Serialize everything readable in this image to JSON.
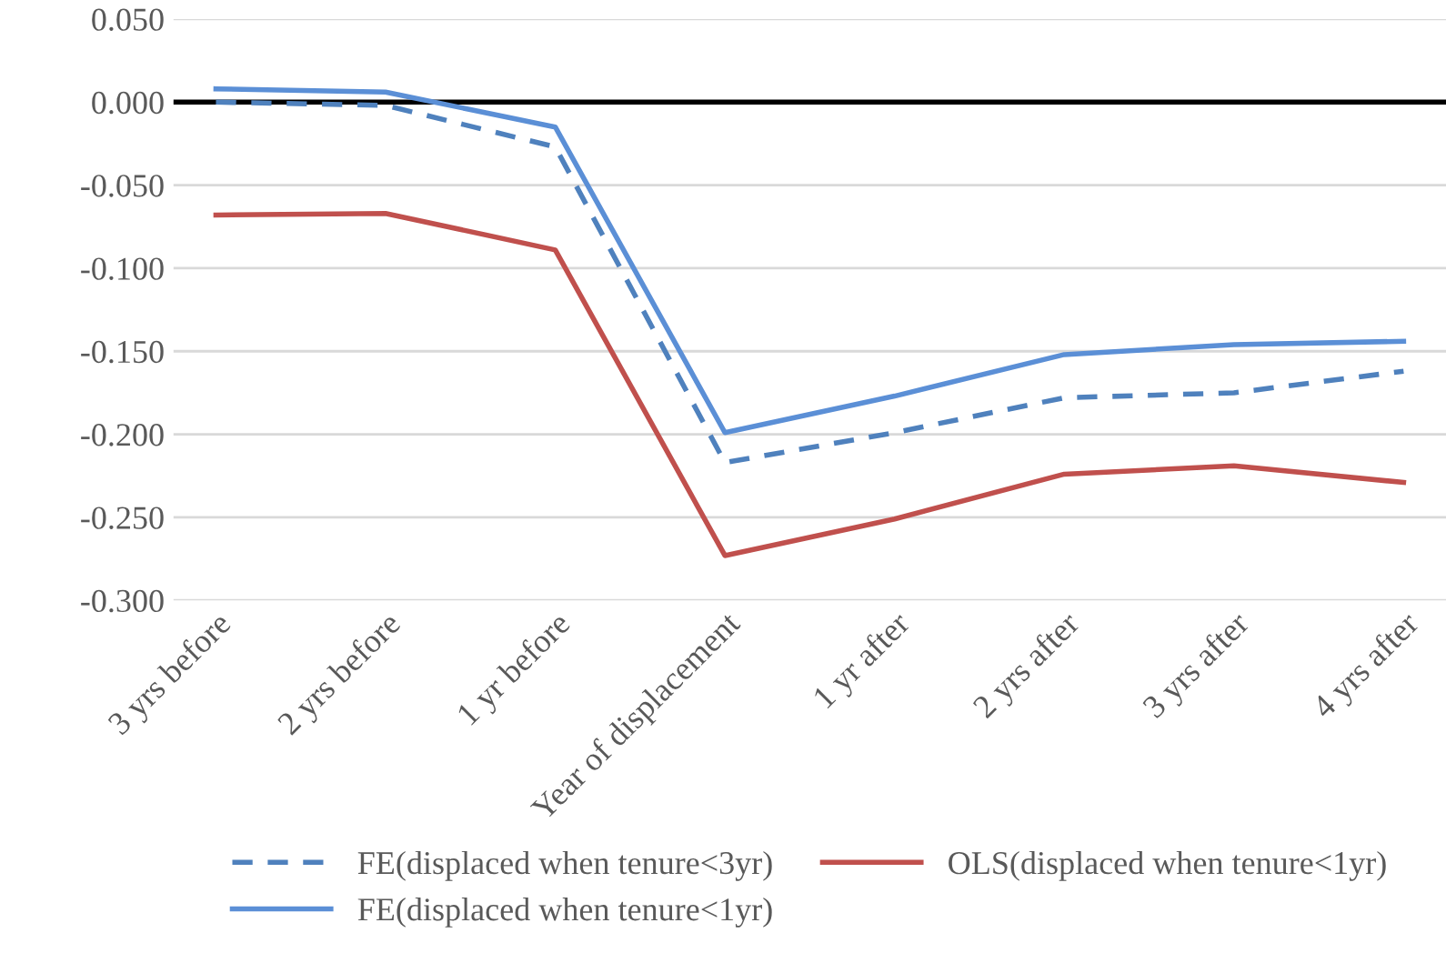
{
  "chart_data": {
    "type": "line",
    "categories": [
      "3 yrs before",
      "2 yrs before",
      "1 yr before",
      "Year of displacement",
      "1 yr after",
      "2 yrs after",
      "3 yrs after",
      "4 yrs after"
    ],
    "series": [
      {
        "name": "FE(displaced when tenure<3yr)",
        "color": "#4f81bd",
        "line_style": "dashed",
        "values": [
          0.0,
          -0.002,
          -0.027,
          -0.217,
          -0.199,
          -0.178,
          -0.175,
          -0.162
        ]
      },
      {
        "name": "OLS(displaced when tenure<1yr)",
        "color": "#c0504d",
        "values": [
          -0.068,
          -0.067,
          -0.089,
          -0.273,
          -0.251,
          -0.224,
          -0.219,
          -0.229
        ]
      },
      {
        "name": "FE(displaced when tenure<1yr)",
        "color": "#5b8fd6",
        "values": [
          0.008,
          0.006,
          -0.015,
          -0.199,
          -0.177,
          -0.152,
          -0.146,
          -0.144
        ]
      }
    ],
    "ylim": [
      -0.3,
      0.05
    ],
    "yticks": [
      {
        "value": 0.05,
        "label": "0.050"
      },
      {
        "value": 0,
        "label": "0.000"
      },
      {
        "value": -0.05,
        "label": "-0.050"
      },
      {
        "value": -0.1,
        "label": "-0.100"
      },
      {
        "value": -0.15,
        "label": "-0.150"
      },
      {
        "value": -0.2,
        "label": "-0.200"
      },
      {
        "value": -0.25,
        "label": "-0.250"
      },
      {
        "value": -0.3,
        "label": "-0.300"
      }
    ],
    "ref_lines": [
      {
        "axis": "y",
        "value": 0,
        "color": "#000000"
      }
    ],
    "grid": "y",
    "legend": "bottom",
    "marker": "none",
    "line_style": "solid"
  }
}
